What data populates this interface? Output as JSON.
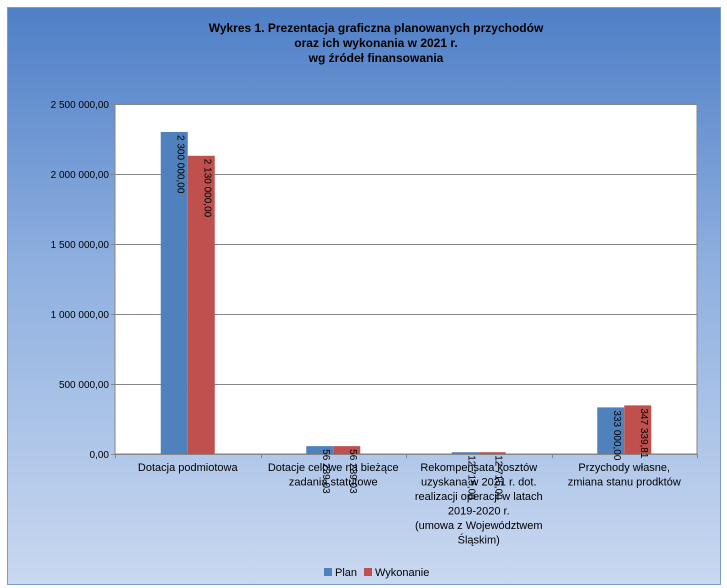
{
  "chart_data": {
    "type": "bar",
    "title_lines": [
      "Wykres 1. Prezentacja graficzna planowanych przychodów",
      "oraz ich wykonania w 2021 r.",
      "wg źródeł finansowania"
    ],
    "categories": [
      [
        "Dotacja podmiotowa"
      ],
      [
        "Dotacje celowe na bieżące",
        "zadania statutowe"
      ],
      [
        "Rekompensata kosztów",
        "uzyskana w 2021 r. dot.",
        "realizacji operacji w latach",
        "2019-2020 r.",
        "(umowa z Województwem",
        "Śląskim)"
      ],
      [
        "Przychody własne,",
        "zmiana stanu prodktów"
      ]
    ],
    "series": [
      {
        "name": "Plan",
        "color": "#4f81bd",
        "values": [
          2300000.0,
          56239.03,
          12715.0,
          333000.0
        ],
        "labels": [
          "2 300 000,00",
          "56 239,03",
          "12 715,00",
          "333 000,00"
        ]
      },
      {
        "name": "Wykonanie",
        "color": "#c0504d",
        "values": [
          2130000.0,
          56239.03,
          12715.0,
          347339.81
        ],
        "labels": [
          "2 130 000,00",
          "56 239,03",
          "12 715,00",
          "347 339,81"
        ]
      }
    ],
    "ylim": [
      0,
      2500000
    ],
    "yticks": [
      0,
      500000,
      1000000,
      1500000,
      2000000,
      2500000
    ],
    "ytick_labels": [
      "0,00",
      "500 000,00",
      "1 000 000,00",
      "1 500 000,00",
      "2 000 000,00",
      "2 500 000,00"
    ],
    "grid": true,
    "legend_position": "bottom"
  }
}
